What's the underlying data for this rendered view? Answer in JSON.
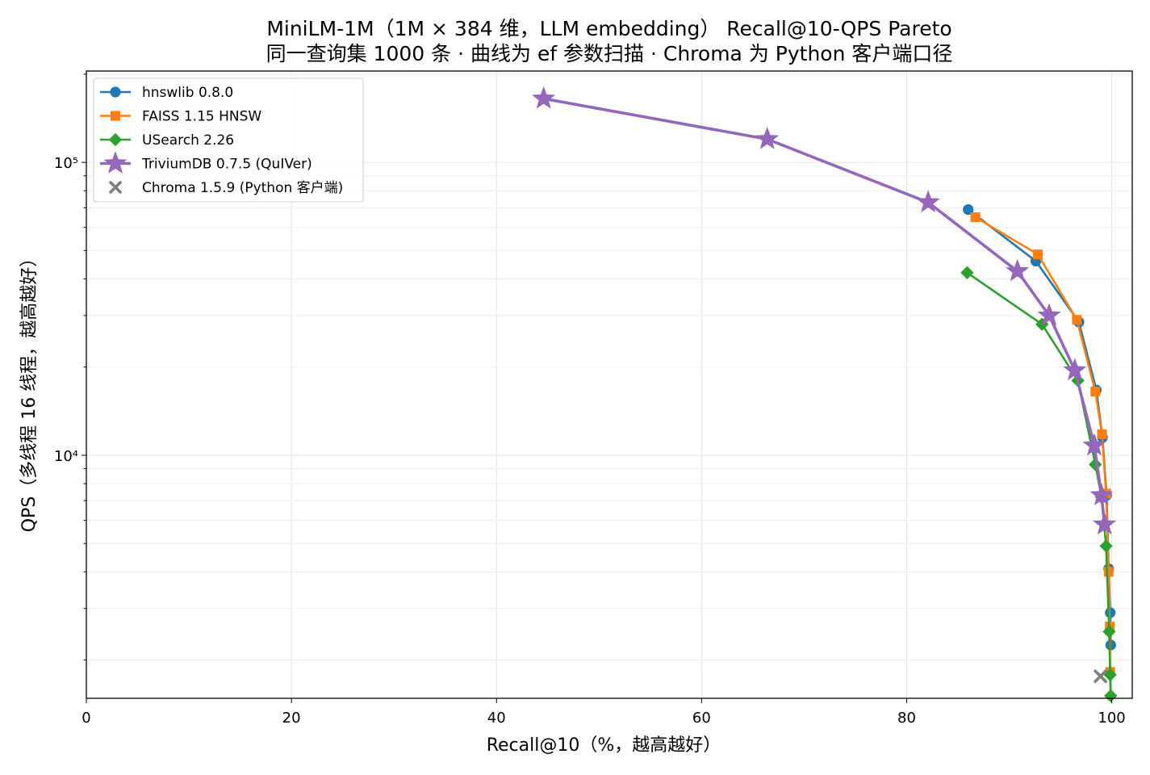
{
  "chart_data": {
    "type": "line",
    "title": "MiniLM-1M（1M × 384 维，LLM embedding） Recall@10-QPS Pareto",
    "subtitle": "同一查询集 1000 条 · 曲线为 ef 参数扫描 · Chroma 为 Python 客户端口径",
    "xlabel": "Recall@10（%，越高越好）",
    "ylabel": "QPS（多线程 16 线程，越高越好）",
    "xlim": [
      0,
      102
    ],
    "ylim": [
      1480,
      205000
    ],
    "yscale": "log",
    "xticks": [
      0,
      20,
      40,
      60,
      80,
      100
    ],
    "xtick_labels": [
      "0",
      "20",
      "40",
      "60",
      "80",
      "100"
    ],
    "yticks": [
      10000,
      100000
    ],
    "ytick_labels": [
      "10⁴",
      "10⁵"
    ],
    "grid": true,
    "legend_position": "top-left",
    "series": [
      {
        "name": "hnswlib 0.8.0",
        "color": "#1f77b4",
        "marker": "circle",
        "x": [
          86.0,
          92.6,
          96.8,
          98.5,
          99.1,
          99.5,
          99.7,
          99.85,
          99.9
        ],
        "y": [
          69000,
          46000,
          28500,
          16700,
          11500,
          7300,
          4100,
          2900,
          2250
        ]
      },
      {
        "name": "FAISS 1.15 HNSW",
        "color": "#ff7f0e",
        "marker": "square",
        "x": [
          86.7,
          92.8,
          96.6,
          98.4,
          99.05,
          99.45,
          99.7,
          99.8,
          99.85
        ],
        "y": [
          65000,
          48500,
          29000,
          16500,
          11800,
          7400,
          4000,
          2600,
          1820
        ]
      },
      {
        "name": "USearch 2.26",
        "color": "#2ca02c",
        "marker": "diamond",
        "x": [
          85.9,
          93.2,
          96.7,
          98.4,
          99.0,
          99.45,
          99.75,
          99.85,
          99.9
        ],
        "y": [
          42000,
          28000,
          18000,
          9300,
          7200,
          4900,
          2500,
          1780,
          1510
        ]
      },
      {
        "name": "TriviumDB 0.7.5 (QuIVer)",
        "color": "#9467bd",
        "marker": "star",
        "x": [
          44.6,
          66.4,
          82.1,
          90.8,
          93.9,
          96.4,
          98.3,
          99.0,
          99.3
        ],
        "y": [
          165000,
          120000,
          73000,
          42500,
          30000,
          19500,
          10800,
          7300,
          5800
        ]
      },
      {
        "name": "Chroma 1.5.9 (Python 客户端)",
        "color": "#7f7f7f",
        "marker": "x",
        "scatter": true,
        "x": [
          98.9
        ],
        "y": [
          1760
        ]
      }
    ]
  }
}
